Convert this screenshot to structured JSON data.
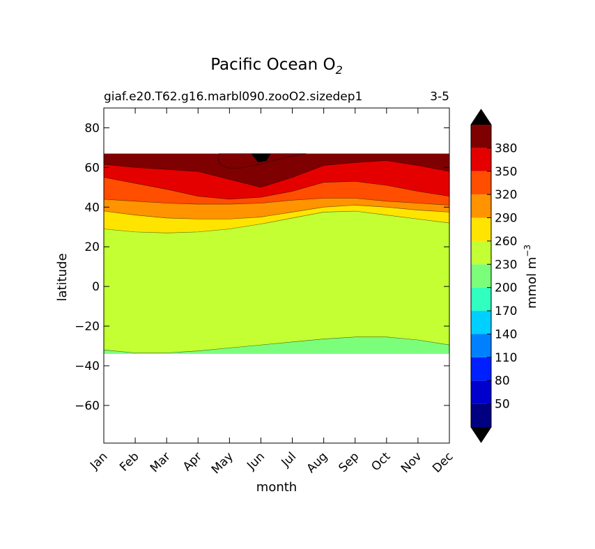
{
  "chart_data": {
    "type": "contour",
    "title_main": "Pacific Ocean O",
    "title_sub": "2",
    "subtitle_left": "giaf.e20.T62.g16.marbl090.zooO2.sizedep1",
    "subtitle_right": "3-5",
    "xlabel": "month",
    "ylabel": "latitude",
    "x_ticks": [
      "Jan",
      "Feb",
      "Mar",
      "Apr",
      "May",
      "Jun",
      "Jul",
      "Aug",
      "Sep",
      "Oct",
      "Nov",
      "Dec"
    ],
    "y_ticks": [
      80,
      60,
      40,
      20,
      0,
      -20,
      -40,
      -60
    ],
    "y_tick_labels": [
      "80",
      "60",
      "40",
      "20",
      "0",
      "−20",
      "−40",
      "−60"
    ],
    "ylim": [
      -79,
      90
    ],
    "data_lat_range": [
      -34,
      67
    ],
    "grid": false,
    "colorbar": {
      "label": "mmol m",
      "label_exp": "−3",
      "levels": [
        50,
        80,
        110,
        140,
        170,
        200,
        230,
        260,
        290,
        320,
        350,
        380
      ],
      "tick_labels": [
        "50",
        "80",
        "110",
        "140",
        "170",
        "200",
        "230",
        "260",
        "290",
        "320",
        "350",
        "380"
      ],
      "extend": "both",
      "colors": [
        "#000080",
        "#0000cd",
        "#0020ff",
        "#0080ff",
        "#00d0ff",
        "#30ffc0",
        "#7bff7b",
        "#c3ff33",
        "#ffe400",
        "#ff9300",
        "#ff4e00",
        "#e50000",
        "#7f0000"
      ],
      "under_color": "#000000",
      "over_color": "#000000"
    },
    "contour_boundaries": [
      {
        "level": 230,
        "lat_by_month": [
          -32,
          -33.5,
          -33.5,
          -32.5,
          -31,
          -29.5,
          -28,
          -26.5,
          -25.5,
          -25.5,
          -27,
          -29.5
        ]
      },
      {
        "level": 260,
        "lat_by_month": [
          29,
          27.5,
          27,
          27.5,
          29,
          31.5,
          34.5,
          37.5,
          38,
          36,
          34,
          32
        ]
      },
      {
        "level": 290,
        "lat_by_month": [
          38,
          36,
          34.5,
          34,
          34,
          35,
          37.5,
          40,
          41,
          40,
          38.5,
          37.5
        ]
      },
      {
        "level": 320,
        "lat_by_month": [
          44,
          43,
          42,
          41.5,
          41.5,
          42,
          43.5,
          44.5,
          44.5,
          43,
          42,
          41
        ]
      },
      {
        "level": 350,
        "lat_by_month": [
          55,
          52,
          49,
          45.5,
          44,
          45,
          48,
          52.5,
          53,
          51,
          48,
          45.5
        ]
      },
      {
        "level": 380,
        "lat_by_month": [
          61.5,
          60,
          59,
          58,
          54,
          50,
          55,
          61,
          62.5,
          63.5,
          61,
          58
        ]
      }
    ],
    "peak_regions": [
      {
        "level": "380+",
        "month_range": [
          "Apr",
          "Jul"
        ],
        "lat_min": 62
      },
      {
        "level": "over",
        "month": "Jun",
        "lat": 64
      }
    ]
  }
}
